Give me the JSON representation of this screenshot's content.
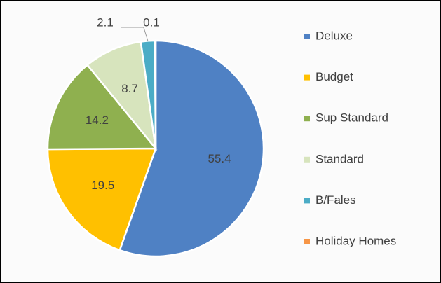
{
  "chart_data": {
    "type": "pie",
    "categories": [
      "Deluxe",
      "Budget",
      "Sup Standard",
      "Standard",
      "B/Fales",
      "Holiday Homes"
    ],
    "values": [
      55.4,
      19.5,
      14.2,
      8.7,
      2.1,
      0.1
    ],
    "colors": [
      "#4f81c4",
      "#ffc000",
      "#8fb04f",
      "#d7e4bd",
      "#4bacc6",
      "#f79646"
    ],
    "legend": "right"
  }
}
